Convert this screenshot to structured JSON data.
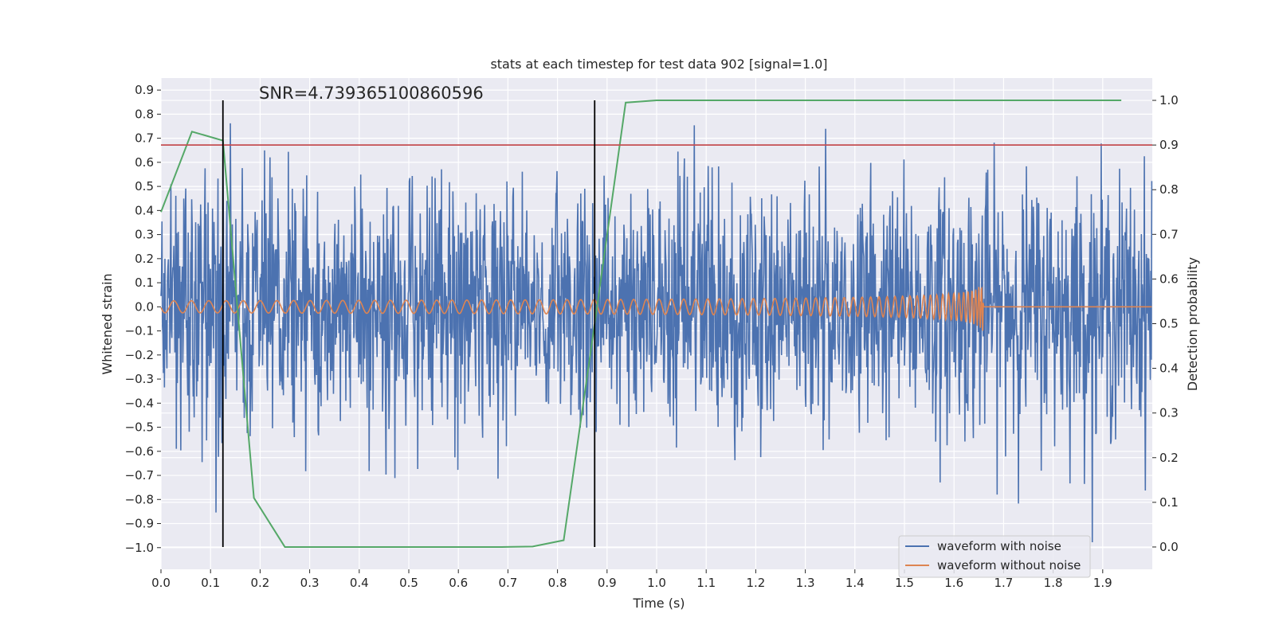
{
  "chart_data": {
    "type": "line",
    "title": "stats at each timestep for test data 902 [signal=1.0]",
    "xlabel": "Time (s)",
    "ylabel": "Whitened strain",
    "y2label": "Detection probability",
    "xlim": [
      0.0,
      2.0
    ],
    "ylim": [
      -1.09,
      0.95
    ],
    "y2lim": [
      -0.05,
      1.05
    ],
    "xticks": [
      "0.0",
      "0.1",
      "0.2",
      "0.3",
      "0.4",
      "0.5",
      "0.6",
      "0.7",
      "0.8",
      "0.9",
      "1.0",
      "1.1",
      "1.2",
      "1.3",
      "1.4",
      "1.5",
      "1.6",
      "1.7",
      "1.8",
      "1.9"
    ],
    "yticks": [
      "0.9",
      "0.8",
      "0.7",
      "0.6",
      "0.5",
      "0.4",
      "0.3",
      "0.2",
      "0.1",
      "0.0",
      "−0.1",
      "−0.2",
      "−0.3",
      "−0.4",
      "−0.5",
      "−0.6",
      "−0.7",
      "−0.8",
      "−0.9",
      "−1.0"
    ],
    "y2ticks": [
      "1.0",
      "0.9",
      "0.8",
      "0.7",
      "0.6",
      "0.5",
      "0.4",
      "0.3",
      "0.2",
      "0.1",
      "0.0"
    ],
    "grid": true,
    "legend_position": "lower-right",
    "annotation": "SNR=4.739365100860596",
    "threshold": {
      "y2": 0.9,
      "color": "#c44e52"
    },
    "vlines": {
      "x": [
        0.125,
        0.875
      ],
      "color": "#000000"
    },
    "series": [
      {
        "name": "waveform with noise",
        "color": "#4c72b0",
        "description_axis": "left",
        "generated": "noise",
        "n_points": 2000,
        "noise_std": 0.26
      },
      {
        "name": "waveform without noise",
        "color": "#dd8452",
        "description_axis": "left",
        "generated": "chirp",
        "merger_time": 1.66
      },
      {
        "color": "#55a868",
        "axis": "right",
        "x": [
          0.0,
          0.0625,
          0.125,
          0.1875,
          0.25,
          0.3125,
          0.375,
          0.4375,
          0.5,
          0.5625,
          0.625,
          0.6875,
          0.75,
          0.8125,
          0.875,
          0.9375,
          1.0,
          1.0625,
          1.125,
          1.1875,
          1.25,
          1.3125,
          1.375,
          1.4375,
          1.5,
          1.5625,
          1.625,
          1.6875,
          1.75,
          1.8125,
          1.875,
          1.9375
        ],
        "values": [
          0.75,
          0.93,
          0.91,
          0.11,
          0.0,
          0.0,
          0.0,
          0.0,
          0.0,
          0.0,
          0.0,
          0.0,
          0.001,
          0.015,
          0.5,
          0.995,
          1.0,
          1.0,
          1.0,
          1.0,
          1.0,
          1.0,
          1.0,
          1.0,
          1.0,
          1.0,
          1.0,
          1.0,
          1.0,
          1.0,
          1.0,
          1.0
        ]
      }
    ]
  }
}
